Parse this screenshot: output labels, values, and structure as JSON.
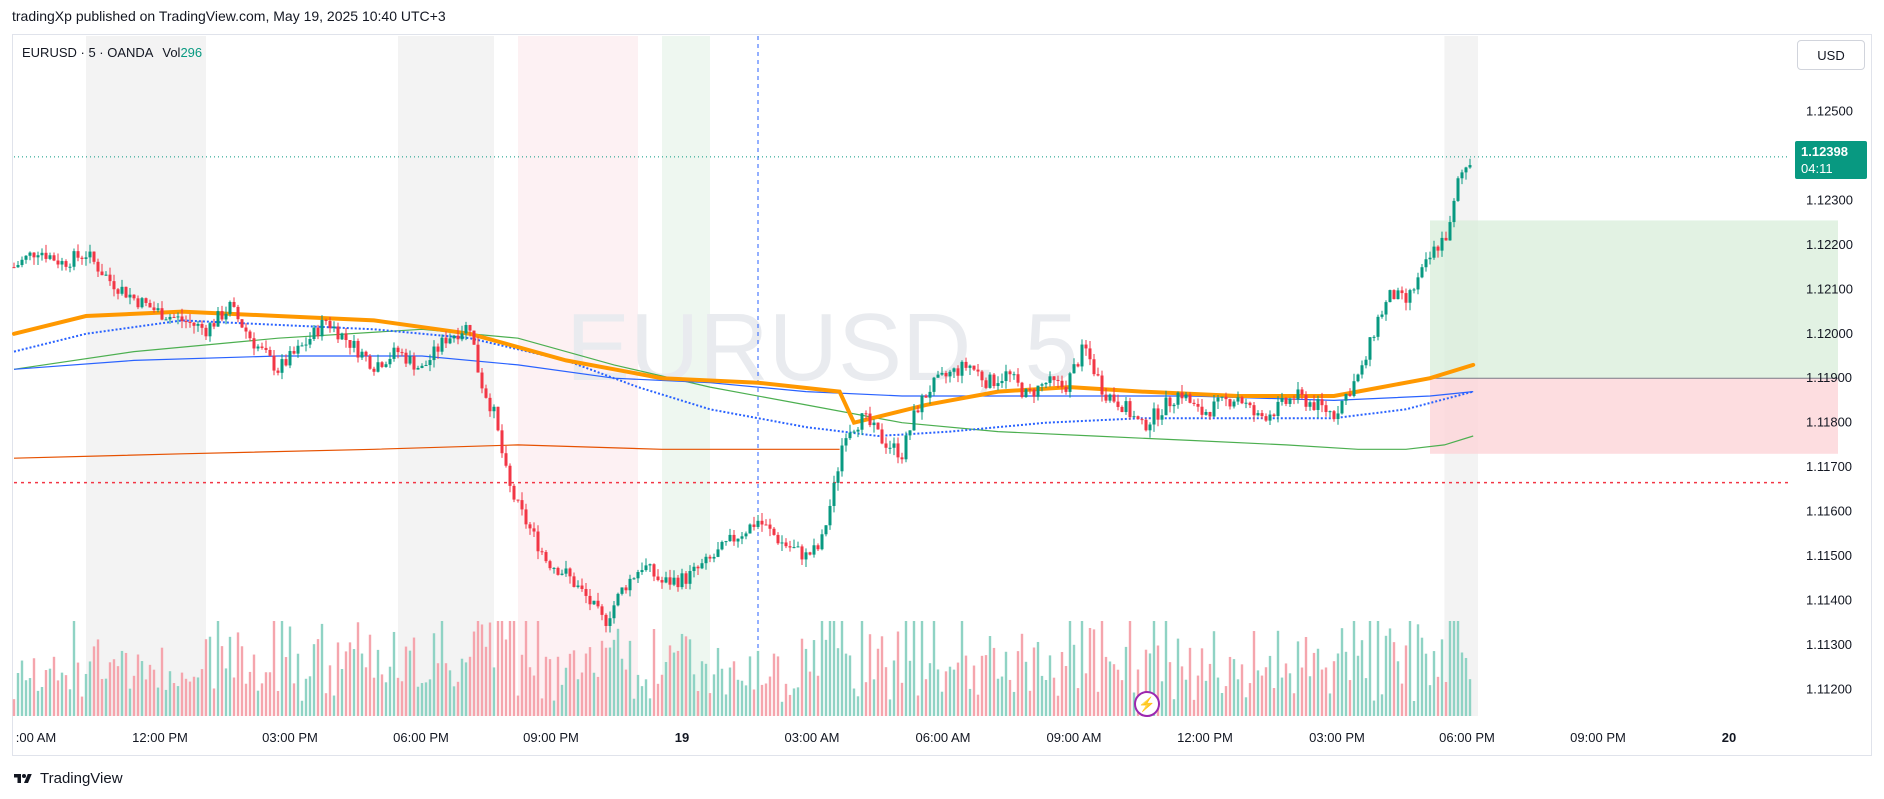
{
  "header": {
    "publish_line": "tradingXp published on TradingView.com, May 19, 2025 10:40 UTC+3"
  },
  "legend": {
    "symbol": "EURUSD · 5 · OANDA",
    "vol_label": "Vol",
    "vol_value": "296"
  },
  "watermark": "EURUSD, 5",
  "currency_button": "USD",
  "last_price": {
    "price": "1.12398",
    "countdown": "04:11"
  },
  "footer": {
    "brand": "TradingView"
  },
  "colors": {
    "up": "#089981",
    "down": "#f23645",
    "ema_orange": "#ff9800",
    "blue": "#2962ff",
    "green_ma": "#4caf50",
    "long_profit": "#d5ecd7",
    "long_loss": "#fcd4d8",
    "current_line": "#089981",
    "support_line": "#f23645"
  },
  "chart_data": {
    "type": "candlestick",
    "symbol": "EURUSD",
    "timeframe": "5",
    "exchange": "OANDA",
    "ylim": [
      1.1114,
      1.1267
    ],
    "y_ticks": [
      "1.12500",
      "1.12300",
      "1.12200",
      "1.12100",
      "1.12000",
      "1.11900",
      "1.11800",
      "1.11700",
      "1.11600",
      "1.11500",
      "1.11400",
      "1.11300",
      "1.11200"
    ],
    "x_ticks": [
      ":00 AM",
      "12:00 PM",
      "03:00 PM",
      "06:00 PM",
      "09:00 PM",
      "19",
      "03:00 AM",
      "06:00 AM",
      "09:00 AM",
      "12:00 PM",
      "03:00 PM",
      "06:00 PM",
      "09:00 PM",
      "20"
    ],
    "time_range_hours": [
      8.5,
      45.5
    ],
    "series_close_path": [
      [
        8.5,
        1.1215
      ],
      [
        9.0,
        1.1219
      ],
      [
        9.5,
        1.1216
      ],
      [
        10.0,
        1.1218
      ],
      [
        10.5,
        1.1212
      ],
      [
        11.0,
        1.1208
      ],
      [
        11.5,
        1.1205
      ],
      [
        12.0,
        1.1203
      ],
      [
        12.5,
        1.1201
      ],
      [
        13.0,
        1.1206
      ],
      [
        13.5,
        1.1198
      ],
      [
        14.0,
        1.1192
      ],
      [
        14.5,
        1.1197
      ],
      [
        15.0,
        1.1203
      ],
      [
        15.5,
        1.1198
      ],
      [
        16.0,
        1.1193
      ],
      [
        16.5,
        1.1196
      ],
      [
        17.0,
        1.1192
      ],
      [
        17.5,
        1.1199
      ],
      [
        18.0,
        1.1202
      ],
      [
        18.2,
        1.119
      ],
      [
        18.5,
        1.1182
      ],
      [
        18.8,
        1.1166
      ],
      [
        19.0,
        1.1161
      ],
      [
        19.3,
        1.1155
      ],
      [
        19.6,
        1.1149
      ],
      [
        20.0,
        1.1146
      ],
      [
        20.4,
        1.1141
      ],
      [
        20.8,
        1.1135
      ],
      [
        21.2,
        1.1143
      ],
      [
        21.6,
        1.1148
      ],
      [
        22.0,
        1.1144
      ],
      [
        22.5,
        1.1145
      ],
      [
        23.0,
        1.1149
      ],
      [
        23.5,
        1.1154
      ],
      [
        24.0,
        1.1158
      ],
      [
        24.5,
        1.1153
      ],
      [
        25.0,
        1.115
      ],
      [
        25.3,
        1.1152
      ],
      [
        25.6,
        1.1166
      ],
      [
        25.8,
        1.1178
      ],
      [
        26.2,
        1.1181
      ],
      [
        26.6,
        1.1176
      ],
      [
        27.0,
        1.1173
      ],
      [
        27.3,
        1.1183
      ],
      [
        27.6,
        1.1188
      ],
      [
        28.0,
        1.1191
      ],
      [
        28.4,
        1.1193
      ],
      [
        28.8,
        1.1189
      ],
      [
        29.2,
        1.1191
      ],
      [
        29.6,
        1.1186
      ],
      [
        30.0,
        1.1189
      ],
      [
        30.4,
        1.1188
      ],
      [
        30.8,
        1.1197
      ],
      [
        31.2,
        1.1187
      ],
      [
        31.6,
        1.1184
      ],
      [
        32.0,
        1.1179
      ],
      [
        32.4,
        1.1183
      ],
      [
        32.8,
        1.1187
      ],
      [
        33.2,
        1.1182
      ],
      [
        33.6,
        1.1184
      ],
      [
        34.0,
        1.1186
      ],
      [
        34.4,
        1.1181
      ],
      [
        34.8,
        1.1183
      ],
      [
        35.2,
        1.1186
      ],
      [
        35.6,
        1.1184
      ],
      [
        36.0,
        1.1182
      ],
      [
        36.3,
        1.1187
      ],
      [
        36.6,
        1.1192
      ],
      [
        36.9,
        1.1203
      ],
      [
        37.2,
        1.1209
      ],
      [
        37.5,
        1.1207
      ],
      [
        37.8,
        1.1213
      ],
      [
        38.1,
        1.1219
      ],
      [
        38.4,
        1.1223
      ],
      [
        38.6,
        1.1235
      ],
      [
        38.9,
        1.124
      ]
    ],
    "ema_fast_path": [
      [
        8.5,
        1.12
      ],
      [
        10.0,
        1.1204
      ],
      [
        12.0,
        1.1205
      ],
      [
        14.0,
        1.1204
      ],
      [
        16.0,
        1.1203
      ],
      [
        18.0,
        1.12
      ],
      [
        20.0,
        1.1194
      ],
      [
        22.0,
        1.119
      ],
      [
        24.0,
        1.1189
      ],
      [
        25.7,
        1.1187
      ],
      [
        26.0,
        1.118
      ],
      [
        27.5,
        1.1184
      ],
      [
        29.0,
        1.1187
      ],
      [
        30.5,
        1.1188
      ],
      [
        32.0,
        1.1187
      ],
      [
        34.0,
        1.1186
      ],
      [
        36.0,
        1.1186
      ],
      [
        37.0,
        1.1188
      ],
      [
        38.0,
        1.119
      ],
      [
        38.9,
        1.1193
      ]
    ],
    "ema_dotted_path": [
      [
        8.5,
        1.1196
      ],
      [
        10.0,
        1.12
      ],
      [
        12.0,
        1.1203
      ],
      [
        14.0,
        1.1202
      ],
      [
        16.0,
        1.1201
      ],
      [
        18.0,
        1.1199
      ],
      [
        20.0,
        1.1194
      ],
      [
        21.5,
        1.1188
      ],
      [
        23.0,
        1.1183
      ],
      [
        25.0,
        1.1179
      ],
      [
        26.5,
        1.1177
      ],
      [
        28.0,
        1.1178
      ],
      [
        30.0,
        1.118
      ],
      [
        32.0,
        1.1181
      ],
      [
        34.0,
        1.1181
      ],
      [
        36.0,
        1.1181
      ],
      [
        37.5,
        1.1183
      ],
      [
        38.9,
        1.1187
      ]
    ],
    "sma_blue_path": [
      [
        8.5,
        1.1192
      ],
      [
        11.0,
        1.1194
      ],
      [
        14.0,
        1.1195
      ],
      [
        17.0,
        1.1195
      ],
      [
        19.0,
        1.1193
      ],
      [
        21.0,
        1.119
      ],
      [
        23.0,
        1.1189
      ],
      [
        25.0,
        1.1187
      ],
      [
        27.0,
        1.1186
      ],
      [
        30.0,
        1.1186
      ],
      [
        33.0,
        1.1186
      ],
      [
        36.0,
        1.1185
      ],
      [
        38.0,
        1.1186
      ],
      [
        38.9,
        1.1187
      ]
    ],
    "sma_green_path": [
      [
        8.5,
        1.1192
      ],
      [
        11.0,
        1.1196
      ],
      [
        14.0,
        1.1199
      ],
      [
        17.0,
        1.1201
      ],
      [
        19.0,
        1.1199
      ],
      [
        21.0,
        1.1193
      ],
      [
        23.0,
        1.1188
      ],
      [
        25.0,
        1.1184
      ],
      [
        27.0,
        1.118
      ],
      [
        29.0,
        1.1178
      ],
      [
        31.0,
        1.1177
      ],
      [
        33.0,
        1.1176
      ],
      [
        35.0,
        1.1175
      ],
      [
        36.5,
        1.1174
      ],
      [
        37.5,
        1.1174
      ],
      [
        38.3,
        1.1175
      ],
      [
        38.9,
        1.1177
      ]
    ],
    "ema_slow_path": [
      [
        8.5,
        1.1172
      ],
      [
        12.0,
        1.1173
      ],
      [
        16.0,
        1.1174
      ],
      [
        19.0,
        1.1175
      ],
      [
        22.0,
        1.1174
      ],
      [
        25.7,
        1.1174
      ]
    ],
    "current_price": 1.12398,
    "support_level": 1.11665,
    "position": {
      "side": "long",
      "start_hour": 38.0,
      "end_hour": 46.5,
      "entry": 1.119,
      "target": 1.12255,
      "stop": 1.1173
    },
    "session_bands": [
      {
        "from": 10.0,
        "to": 12.5,
        "kind": "gray"
      },
      {
        "from": 16.5,
        "to": 18.5,
        "kind": "gray"
      },
      {
        "from": 19.0,
        "to": 21.5,
        "kind": "red"
      },
      {
        "from": 22.0,
        "to": 23.0,
        "kind": "green"
      },
      {
        "from": 38.3,
        "to": 39.0,
        "kind": "gray"
      }
    ],
    "day_divider_hour": 24.0
  }
}
